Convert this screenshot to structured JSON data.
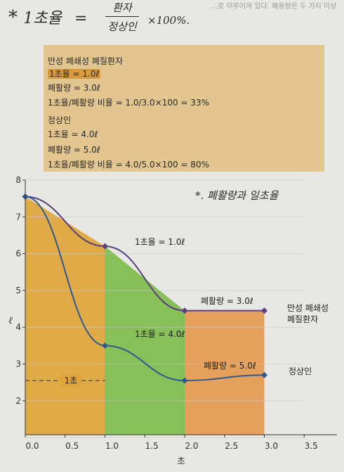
{
  "top_text": "…로 이루어져 있다. 폐용량은 두 가지 이상",
  "handwriting": {
    "star": "*",
    "term": "1초율",
    "equals": "=",
    "numerator": "환자",
    "denominator": "정상인",
    "multiplier": "×100%.",
    "note": "*. 폐활량과 일초율"
  },
  "info": {
    "group1_title": "만성 폐쇄성 폐질환자",
    "group1_fev1": "1초율 = 1.0ℓ",
    "group1_fvc": "폐활량 = 3.0ℓ",
    "group1_ratio": "1초율/폐활량 비율 = 1.0/3.0×100 = 33%",
    "group2_title": "정상인",
    "group2_fev1": "1초율 = 4.0ℓ",
    "group2_fvc": "폐활량 = 5.0ℓ",
    "group2_ratio": "1초율/폐활량 비율 = 4.0/5.0×100 = 80%"
  },
  "chart_data": {
    "type": "line",
    "xlabel": "초",
    "ylabel": "ℓ",
    "xlim": [
      0,
      3.5
    ],
    "ylim": [
      1,
      8
    ],
    "x_ticks": [
      "0.0",
      "0.5",
      "1.0",
      "1.5",
      "2.0",
      "2.5",
      "3.0",
      "3.5"
    ],
    "y_ticks": [
      "2",
      "3",
      "4",
      "5",
      "6",
      "7",
      "8"
    ],
    "series": [
      {
        "name": "만성 폐쇄성 폐질환자",
        "x": [
          0,
          1,
          2,
          3
        ],
        "y": [
          7.55,
          6.2,
          4.45,
          4.45
        ],
        "color": "#5a3f7e"
      },
      {
        "name": "정상인",
        "x": [
          0,
          1,
          2,
          3
        ],
        "y": [
          7.55,
          3.5,
          2.55,
          2.7
        ],
        "color": "#2f5890"
      }
    ],
    "annotations": [
      {
        "text": "1초율 = 1.0ℓ"
      },
      {
        "text": "폐활량 = 3.0ℓ"
      },
      {
        "text": "1초율 = 4.0ℓ"
      },
      {
        "text": "폐활량 = 5.0ℓ"
      },
      {
        "text": "1초"
      }
    ],
    "shaded_regions": [
      {
        "x": [
          0,
          1
        ],
        "color": "#e0a43a"
      },
      {
        "x": [
          1,
          2
        ],
        "color": "#7fbb4d"
      },
      {
        "x": [
          2,
          3
        ],
        "color": "#e59a4f"
      }
    ],
    "grid": true
  },
  "colors": {
    "region1": "#e0a43a",
    "region2": "#7fbb4d",
    "region3": "#e59a4f",
    "info_box": "#e3c590",
    "patient_line": "#5a3f7e",
    "normal_line": "#2f5890"
  }
}
